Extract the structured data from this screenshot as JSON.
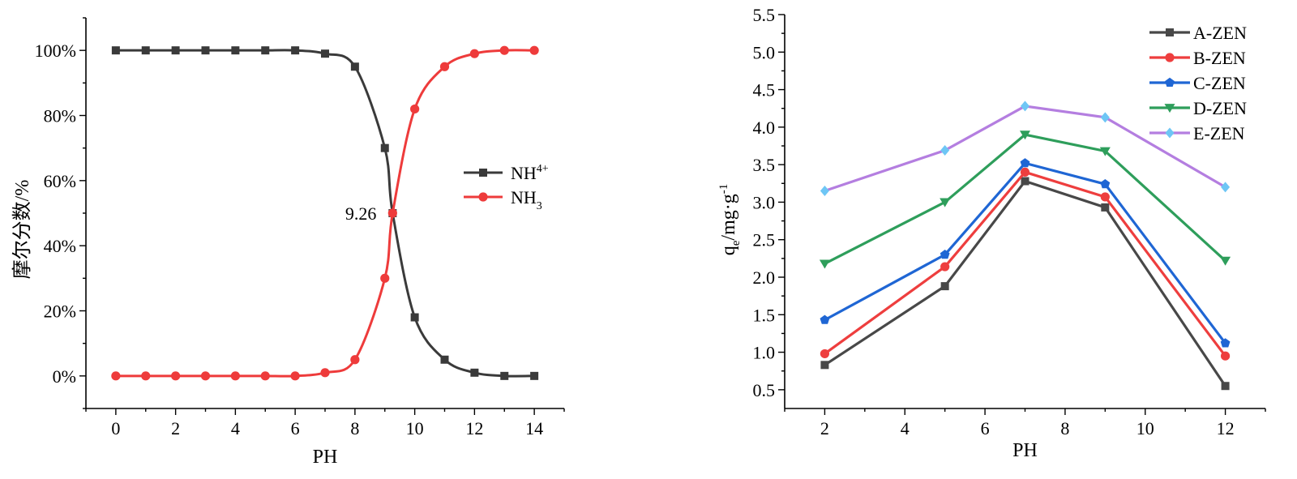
{
  "chart_data": [
    {
      "type": "line",
      "xlabel": "PH",
      "ylabel": "摩尔分数/%",
      "xlim": [
        -1,
        15
      ],
      "ylim": [
        -10,
        110
      ],
      "xticks": [
        "0",
        "2",
        "4",
        "6",
        "8",
        "10",
        "12",
        "14"
      ],
      "xtick_values": [
        0,
        2,
        4,
        6,
        8,
        10,
        12,
        14
      ],
      "yticks": [
        "0%",
        "20%",
        "40%",
        "60%",
        "80%",
        "100%"
      ],
      "ytick_values": [
        0,
        20,
        40,
        60,
        80,
        100
      ],
      "annotation": "9.26",
      "annotation_point": [
        9.26,
        50
      ],
      "legend_position": "center-right",
      "series": [
        {
          "name": "NH",
          "sup": "4+",
          "sub": "",
          "color": "#3a3a3a",
          "marker": "square",
          "x": [
            0,
            1,
            2,
            3,
            4,
            5,
            6,
            7,
            8,
            9,
            9.26,
            10,
            11,
            12,
            13,
            14
          ],
          "values": [
            100,
            100,
            100,
            100,
            100,
            100,
            100,
            99,
            95,
            70,
            50,
            18,
            5,
            1,
            0,
            0
          ]
        },
        {
          "name": "NH",
          "sup": "",
          "sub": "3",
          "color": "#ee3b3b",
          "marker": "circle",
          "x": [
            0,
            1,
            2,
            3,
            4,
            5,
            6,
            7,
            8,
            9,
            9.26,
            10,
            11,
            12,
            13,
            14
          ],
          "values": [
            0,
            0,
            0,
            0,
            0,
            0,
            0,
            1,
            5,
            30,
            50,
            82,
            95,
            99,
            100,
            100
          ]
        }
      ]
    },
    {
      "type": "line",
      "xlabel": "PH",
      "ylabel_main": "q",
      "ylabel_sub": "e",
      "ylabel_rest": "/mg·g",
      "ylabel_sup": "-1",
      "xlim": [
        1,
        13
      ],
      "ylim": [
        0.25,
        5.5
      ],
      "xticks": [
        "2",
        "4",
        "6",
        "8",
        "10",
        "12"
      ],
      "xtick_values": [
        2,
        4,
        6,
        8,
        10,
        12
      ],
      "yticks": [
        "0.5",
        "1.0",
        "1.5",
        "2.0",
        "2.5",
        "3.0",
        "3.5",
        "4.0",
        "4.5",
        "5.0",
        "5.5"
      ],
      "ytick_values": [
        0.5,
        1.0,
        1.5,
        2.0,
        2.5,
        3.0,
        3.5,
        4.0,
        4.5,
        5.0,
        5.5
      ],
      "legend_position": "top-right",
      "categories": [
        2,
        5,
        7,
        9,
        12
      ],
      "series": [
        {
          "name": "A-ZEN",
          "color": "#484848",
          "marker": "square",
          "values": [
            0.83,
            1.88,
            3.28,
            2.93,
            0.55
          ]
        },
        {
          "name": "B-ZEN",
          "color": "#ee3e3e",
          "marker": "circle",
          "values": [
            0.98,
            2.14,
            3.4,
            3.07,
            0.95
          ]
        },
        {
          "name": "C-ZEN",
          "color": "#1f66d4",
          "marker": "pentagon",
          "values": [
            1.43,
            2.3,
            3.52,
            3.24,
            1.12
          ]
        },
        {
          "name": "D-ZEN",
          "color": "#2e9e5b",
          "marker": "triangle",
          "values": [
            2.18,
            3.0,
            3.9,
            3.68,
            2.22
          ]
        },
        {
          "name": "E-ZEN",
          "color": "#b47ee0",
          "marker_color": "#6ec6f5",
          "marker": "diamond",
          "values": [
            3.15,
            3.69,
            4.28,
            4.13,
            3.2
          ]
        }
      ]
    }
  ]
}
